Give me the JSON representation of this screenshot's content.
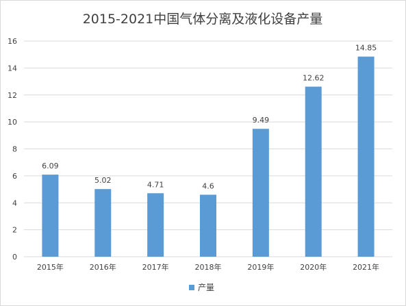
{
  "chart_data": {
    "type": "bar",
    "title": "2015-2021中国气体分离及液化设备产量",
    "categories": [
      "2015年",
      "2016年",
      "2017年",
      "2018年",
      "2019年",
      "2020年",
      "2021年"
    ],
    "series": [
      {
        "name": "产量",
        "values": [
          6.09,
          5.02,
          4.71,
          4.6,
          9.49,
          12.62,
          14.85
        ]
      }
    ],
    "data_labels": [
      "6.09",
      "5.02",
      "4.71",
      "4.6",
      "9.49",
      "12.62",
      "14.85"
    ],
    "ylim": [
      0,
      16
    ],
    "yticks": [
      0,
      2,
      4,
      6,
      8,
      10,
      12,
      14,
      16
    ],
    "grid": true,
    "legend": "bottom",
    "colors": {
      "bar": "#5B9BD5",
      "grid": "#d9d9d9",
      "text": "#404040"
    }
  }
}
